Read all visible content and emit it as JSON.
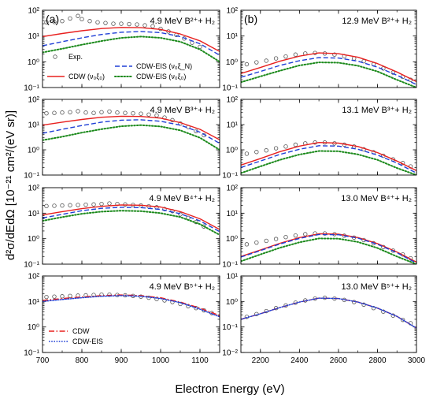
{
  "figure": {
    "xlabel": "Electron Energy (eV)",
    "ylabel": "d²σ/dEdΩ [10⁻²¹ cm²/(eV sr)]"
  },
  "panel_letters": {
    "left": "(a)",
    "right": "(b)"
  },
  "legends": {
    "top": [
      {
        "name": "Exp.",
        "style": "marker",
        "color": "#555555"
      },
      {
        "name": "CDW-EIS (ν₀ξ_N)",
        "style": "dashed",
        "color": "#1f3fd6"
      },
      {
        "name": "CDW (ν₀ξ₀)",
        "style": "solid",
        "color": "#e8201f"
      },
      {
        "name": "CDW-EIS (ν₀ξ₀)",
        "style": "dotted",
        "color": "#1c8a1c"
      }
    ],
    "bottom": [
      {
        "name": "CDW",
        "style": "dashdot",
        "color": "#e8201f"
      },
      {
        "name": "CDW-EIS",
        "style": "shortdot",
        "color": "#1f3fd6"
      }
    ]
  },
  "chart_data": [
    {
      "type": "line",
      "panel": "a1",
      "title": "4.9 MeV B²⁺+ H₂",
      "log_y": true,
      "xlim": [
        700,
        1150
      ],
      "ylim": [
        0.1,
        100
      ],
      "x_ticks": [
        700,
        800,
        900,
        1000,
        1100
      ],
      "y_ticks": [
        0.1,
        1,
        10,
        100
      ],
      "x": [
        700,
        750,
        800,
        850,
        900,
        950,
        1000,
        1050,
        1100,
        1150
      ],
      "series": [
        {
          "name": "Exp.",
          "style": "markers",
          "color": "#555555",
          "x": [
            710,
            730,
            750,
            770,
            790,
            800,
            820,
            840,
            860,
            880,
            900,
            920,
            940,
            960,
            980,
            1000,
            1020,
            1040,
            1060,
            1080,
            1100
          ],
          "values": [
            34,
            35,
            38,
            48,
            60,
            45,
            38,
            34,
            32,
            30,
            30,
            29,
            28,
            26,
            24,
            19,
            15,
            11,
            8,
            5.5,
            3.8
          ]
        },
        {
          "name": "CDW (ν₀ξ₀)",
          "style": "solid",
          "color": "#e8201f",
          "values": [
            9.5,
            12.5,
            16,
            19.5,
            21.5,
            21,
            18,
            12,
            6.5,
            2.5
          ]
        },
        {
          "name": "CDW-EIS (ν₀ξ_N)",
          "style": "dashed",
          "color": "#1f3fd6",
          "values": [
            4.2,
            6,
            8.5,
            11.5,
            14,
            15,
            13.5,
            9.5,
            5,
            1.8
          ]
        },
        {
          "name": "CDW-EIS (ν₀ξ₀)",
          "style": "dotted",
          "color": "#1c8a1c",
          "values": [
            2.3,
            3.2,
            4.6,
            6.4,
            8.5,
            9.5,
            8.5,
            6,
            3,
            1
          ]
        }
      ]
    },
    {
      "type": "line",
      "panel": "b1",
      "title": "12.9 MeV B²⁺+ H₂",
      "log_y": true,
      "xlim": [
        2100,
        3000
      ],
      "ylim": [
        0.1,
        100
      ],
      "x_ticks": [
        2200,
        2400,
        2600,
        2800,
        3000
      ],
      "y_ticks": [
        0.1,
        1,
        10,
        100
      ],
      "x": [
        2100,
        2200,
        2300,
        2400,
        2500,
        2600,
        2700,
        2800,
        2900,
        3000
      ],
      "series": [
        {
          "name": "Exp.",
          "style": "markers",
          "color": "#555555",
          "x": [
            2130,
            2180,
            2230,
            2280,
            2330,
            2380,
            2430,
            2480,
            2530,
            2580,
            2630,
            2680,
            2730,
            2780,
            2830,
            2880,
            2930,
            2970
          ],
          "values": [
            0.8,
            0.95,
            1.1,
            1.35,
            1.6,
            1.9,
            2.1,
            2.2,
            2.1,
            1.9,
            1.65,
            1.35,
            1.05,
            0.8,
            0.55,
            0.38,
            0.26,
            0.2
          ]
        },
        {
          "name": "CDW (ν₀ξ₀)",
          "style": "solid",
          "color": "#e8201f",
          "values": [
            0.35,
            0.6,
            1.05,
            1.65,
            2.2,
            2.05,
            1.5,
            0.85,
            0.4,
            0.17
          ]
        },
        {
          "name": "CDW-EIS (ν₀ξ_N)",
          "style": "dashed",
          "color": "#1f3fd6",
          "values": [
            0.25,
            0.42,
            0.72,
            1.1,
            1.45,
            1.4,
            1.05,
            0.62,
            0.3,
            0.13
          ]
        },
        {
          "name": "CDW-EIS (ν₀ξ₀)",
          "style": "dotted",
          "color": "#1c8a1c",
          "values": [
            0.16,
            0.27,
            0.45,
            0.72,
            0.95,
            0.92,
            0.7,
            0.42,
            0.2,
            0.08
          ]
        }
      ]
    },
    {
      "type": "line",
      "panel": "a2",
      "title": "4.9 MeV B³⁺+ H₂",
      "log_y": true,
      "xlim": [
        700,
        1150
      ],
      "ylim": [
        0.1,
        100
      ],
      "x_ticks": [
        700,
        800,
        900,
        1000,
        1100
      ],
      "y_ticks": [
        0.1,
        1,
        10,
        100
      ],
      "x": [
        700,
        750,
        800,
        850,
        900,
        950,
        1000,
        1050,
        1100,
        1150
      ],
      "series": [
        {
          "name": "Exp.",
          "style": "markers",
          "color": "#555555",
          "x": [
            710,
            730,
            750,
            770,
            790,
            810,
            830,
            850,
            870,
            890,
            910,
            930,
            950,
            970,
            990,
            1010,
            1030,
            1050,
            1070,
            1090,
            1110
          ],
          "values": [
            28,
            29,
            30,
            31,
            34,
            30,
            29,
            31,
            33,
            30,
            29,
            28,
            27,
            25,
            23,
            19,
            15,
            11,
            8,
            5.5,
            3.8
          ]
        },
        {
          "name": "CDW (ν₀ξ₀)",
          "style": "solid",
          "color": "#e8201f",
          "values": [
            9.5,
            12.5,
            16,
            19.5,
            21.5,
            21,
            18,
            12,
            6.5,
            2.5
          ]
        },
        {
          "name": "CDW-EIS (ν₀ξ_N)",
          "style": "dashed",
          "color": "#1f3fd6",
          "values": [
            4.5,
            6.5,
            9.2,
            12.5,
            15,
            15.5,
            13.5,
            9.5,
            5,
            1.8
          ]
        },
        {
          "name": "CDW-EIS (ν₀ξ₀)",
          "style": "dotted",
          "color": "#1c8a1c",
          "values": [
            2.4,
            3.3,
            4.8,
            6.6,
            8.6,
            9.5,
            8.4,
            5.9,
            3,
            1
          ]
        }
      ]
    },
    {
      "type": "line",
      "panel": "b2",
      "title": "13.1 MeV B³⁺+ H₂",
      "log_y": true,
      "xlim": [
        2100,
        3000
      ],
      "ylim": [
        0.1,
        100
      ],
      "x_ticks": [
        2200,
        2400,
        2600,
        2800,
        3000
      ],
      "y_ticks": [
        0.1,
        1,
        10,
        100
      ],
      "x": [
        2100,
        2200,
        2300,
        2400,
        2500,
        2600,
        2700,
        2800,
        2900,
        3000
      ],
      "series": [
        {
          "name": "Exp.",
          "style": "markers",
          "color": "#555555",
          "x": [
            2130,
            2180,
            2230,
            2280,
            2330,
            2380,
            2430,
            2480,
            2530,
            2580,
            2630,
            2680,
            2730,
            2780,
            2830,
            2880,
            2930,
            2970
          ],
          "values": [
            0.7,
            0.82,
            0.95,
            1.15,
            1.35,
            1.6,
            1.8,
            1.95,
            1.95,
            1.8,
            1.6,
            1.35,
            1.05,
            0.8,
            0.58,
            0.42,
            0.3,
            0.22
          ]
        },
        {
          "name": "CDW (ν₀ξ₀)",
          "style": "solid",
          "color": "#e8201f",
          "values": [
            0.25,
            0.45,
            0.85,
            1.4,
            1.95,
            1.85,
            1.35,
            0.78,
            0.36,
            0.15
          ]
        },
        {
          "name": "CDW-EIS (ν₀ξ_N)",
          "style": "dashed",
          "color": "#1f3fd6",
          "values": [
            0.2,
            0.36,
            0.66,
            1.05,
            1.45,
            1.4,
            1.05,
            0.62,
            0.3,
            0.12
          ]
        },
        {
          "name": "CDW-EIS (ν₀ξ₀)",
          "style": "dotted",
          "color": "#1c8a1c",
          "values": [
            0.12,
            0.22,
            0.4,
            0.65,
            0.9,
            0.88,
            0.66,
            0.4,
            0.19,
            0.075
          ]
        }
      ]
    },
    {
      "type": "line",
      "panel": "a3",
      "title": "4.9 MeV B⁴⁺+ H₂",
      "log_y": true,
      "xlim": [
        700,
        1150
      ],
      "ylim": [
        0.1,
        100
      ],
      "x_ticks": [
        700,
        800,
        900,
        1000,
        1100
      ],
      "y_ticks": [
        0.1,
        1,
        10,
        100
      ],
      "x": [
        700,
        750,
        800,
        850,
        900,
        950,
        1000,
        1050,
        1100,
        1150
      ],
      "series": [
        {
          "name": "Exp.",
          "style": "markers",
          "color": "#555555",
          "x": [
            710,
            730,
            750,
            770,
            790,
            810,
            830,
            850,
            870,
            890,
            910,
            930,
            950,
            970,
            990,
            1010,
            1030,
            1050,
            1070,
            1090,
            1110
          ],
          "values": [
            19,
            19.5,
            20,
            20.5,
            21,
            21.5,
            22,
            23,
            24,
            23,
            22,
            21,
            20,
            18.5,
            17,
            14.5,
            12,
            9,
            6.5,
            4.5,
            3
          ]
        },
        {
          "name": "CDW (ν₀ξ₀)",
          "style": "solid",
          "color": "#e8201f",
          "values": [
            8.5,
            11.5,
            15,
            18.5,
            21,
            20.5,
            17.5,
            11.5,
            6,
            2.3
          ]
        },
        {
          "name": "CDW-EIS (ν₀ξ_N)",
          "style": "dashed",
          "color": "#1f3fd6",
          "values": [
            6.5,
            9,
            12.5,
            15.5,
            17,
            16.5,
            14,
            9.5,
            5,
            1.9
          ]
        },
        {
          "name": "CDW-EIS (ν₀ξ₀)",
          "style": "dotted",
          "color": "#1c8a1c",
          "values": [
            5,
            7,
            9.5,
            11.5,
            12.5,
            12,
            10,
            7,
            3.7,
            1.4
          ]
        }
      ]
    },
    {
      "type": "line",
      "panel": "b3",
      "title": "13.0 MeV B⁴⁺+ H₂",
      "log_y": true,
      "xlim": [
        2100,
        3000
      ],
      "ylim": [
        0.1,
        100
      ],
      "x_ticks": [
        2200,
        2400,
        2600,
        2800,
        3000
      ],
      "y_ticks": [
        0.1,
        1,
        10,
        100
      ],
      "x": [
        2100,
        2200,
        2300,
        2400,
        2500,
        2600,
        2700,
        2800,
        2900,
        3000
      ],
      "series": [
        {
          "name": "Exp.",
          "style": "markers",
          "color": "#555555",
          "x": [
            2130,
            2180,
            2230,
            2280,
            2330,
            2380,
            2430,
            2480,
            2530,
            2580,
            2630,
            2680,
            2730,
            2780,
            2830,
            2880,
            2930,
            2970
          ],
          "values": [
            0.6,
            0.7,
            0.82,
            0.97,
            1.15,
            1.33,
            1.5,
            1.6,
            1.6,
            1.5,
            1.3,
            1.1,
            0.88,
            0.66,
            0.47,
            0.34,
            0.24,
            0.17
          ]
        },
        {
          "name": "CDW (ν₀ξ₀)",
          "style": "solid",
          "color": "#e8201f",
          "values": [
            0.2,
            0.36,
            0.66,
            1.1,
            1.55,
            1.5,
            1.1,
            0.64,
            0.3,
            0.12
          ]
        },
        {
          "name": "CDW-EIS (ν₀ξ_N)",
          "style": "dashed",
          "color": "#1f3fd6",
          "values": [
            0.19,
            0.34,
            0.62,
            1.02,
            1.45,
            1.42,
            1.05,
            0.6,
            0.28,
            0.11
          ]
        },
        {
          "name": "CDW-EIS (ν₀ξ₀)",
          "style": "dotted",
          "color": "#1c8a1c",
          "values": [
            0.13,
            0.24,
            0.44,
            0.72,
            1.02,
            1.0,
            0.74,
            0.43,
            0.2,
            0.08
          ]
        }
      ]
    },
    {
      "type": "line",
      "panel": "a4",
      "title": "4.9 MeV B⁵⁺+ H₂",
      "log_y": true,
      "xlim": [
        700,
        1150
      ],
      "ylim": [
        0.1,
        100
      ],
      "x_ticks": [
        700,
        800,
        900,
        1000,
        1100
      ],
      "y_ticks": [
        0.1,
        1,
        10,
        100
      ],
      "x": [
        700,
        750,
        800,
        850,
        900,
        950,
        1000,
        1050,
        1100,
        1150
      ],
      "series": [
        {
          "name": "Exp.",
          "style": "markers",
          "color": "#555555",
          "x": [
            710,
            730,
            750,
            770,
            790,
            810,
            830,
            850,
            870,
            890,
            910,
            930,
            950,
            970,
            990,
            1010,
            1030,
            1050,
            1070,
            1090,
            1110,
            1130
          ],
          "values": [
            15,
            15.5,
            16,
            16.5,
            17,
            17.5,
            18,
            18.5,
            18.5,
            18,
            17.5,
            16.5,
            15.5,
            14,
            12.5,
            11,
            9.5,
            8,
            6.5,
            5.5,
            4.5,
            3.5
          ]
        },
        {
          "name": "CDW",
          "style": "dashdot",
          "color": "#e8201f",
          "values": [
            11,
            13,
            15,
            17,
            18,
            17,
            14,
            9.5,
            5.5,
            2.8
          ]
        },
        {
          "name": "CDW-EIS",
          "style": "shortdot",
          "color": "#1f3fd6",
          "values": [
            10,
            12,
            14,
            16,
            17,
            16,
            13,
            9,
            5,
            2.5
          ]
        }
      ]
    },
    {
      "type": "line",
      "panel": "b4",
      "title": "13.0 MeV B⁵⁺+ H₂",
      "log_y": true,
      "xlim": [
        2100,
        3000
      ],
      "ylim": [
        0.01,
        10
      ],
      "x_ticks": [
        2200,
        2400,
        2600,
        2800,
        3000
      ],
      "y_ticks": [
        0.01,
        0.1,
        1,
        10
      ],
      "x": [
        2100,
        2200,
        2300,
        2400,
        2500,
        2600,
        2700,
        2800,
        2900,
        3000
      ],
      "series": [
        {
          "name": "Exp.",
          "style": "markers",
          "color": "#555555",
          "x": [
            2130,
            2180,
            2230,
            2280,
            2330,
            2380,
            2430,
            2480,
            2530,
            2580,
            2630,
            2680,
            2730,
            2780,
            2830,
            2880,
            2930,
            2970
          ],
          "values": [
            0.25,
            0.32,
            0.42,
            0.55,
            0.7,
            0.9,
            1.1,
            1.3,
            1.4,
            1.3,
            1.15,
            0.95,
            0.75,
            0.55,
            0.4,
            0.28,
            0.19,
            0.14
          ]
        },
        {
          "name": "CDW",
          "style": "dashdot",
          "color": "#e8201f",
          "values": [
            0.2,
            0.33,
            0.58,
            0.95,
            1.35,
            1.3,
            0.95,
            0.55,
            0.26,
            0.09
          ]
        },
        {
          "name": "CDW-EIS",
          "style": "shortdot",
          "color": "#1f3fd6",
          "values": [
            0.2,
            0.33,
            0.58,
            0.95,
            1.35,
            1.3,
            0.95,
            0.55,
            0.26,
            0.09
          ]
        }
      ]
    }
  ]
}
